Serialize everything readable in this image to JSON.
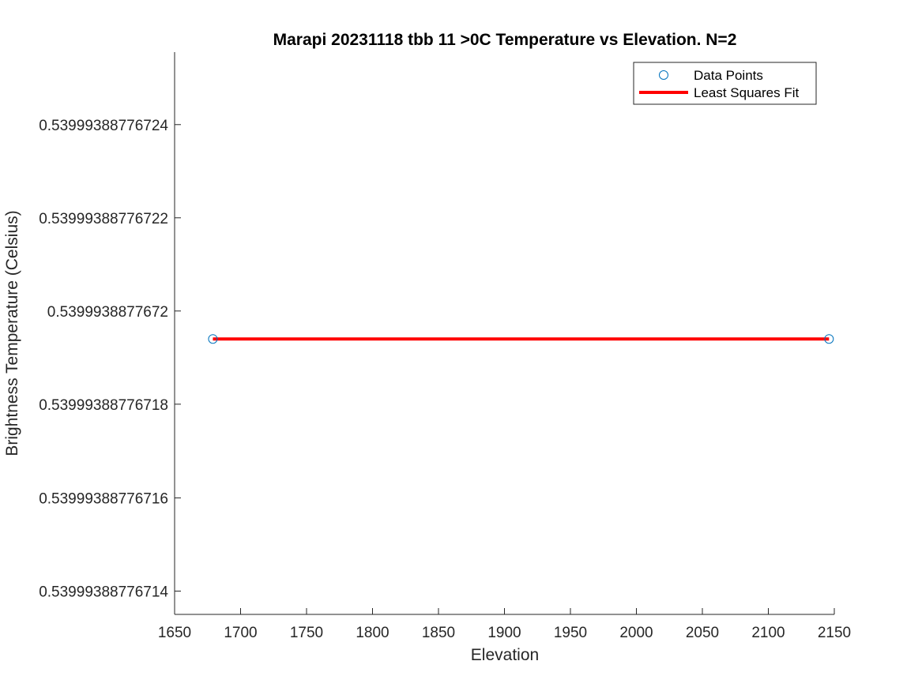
{
  "chart_data": {
    "type": "scatter",
    "title": "Marapi 20231118 tbb 11 >0C Temperature vs Elevation. N=2",
    "xlabel": "Elevation",
    "ylabel": "Brightness Temperature (Celsius)",
    "xlim": [
      1650,
      2150
    ],
    "ylim": [
      0.539993887767135,
      0.5399938877672555
    ],
    "x_ticks": [
      1650,
      1700,
      1750,
      1800,
      1850,
      1900,
      1950,
      2000,
      2050,
      2100,
      2150
    ],
    "x_tick_labels": [
      "1650",
      "1700",
      "1750",
      "1800",
      "1850",
      "1900",
      "1950",
      "2000",
      "2050",
      "2100",
      "2150"
    ],
    "y_ticks": [
      0.53999388776714,
      0.53999388776716,
      0.53999388776718,
      0.5399938877672,
      0.53999388776722,
      0.53999388776724
    ],
    "y_tick_labels": [
      "0.53999388776714",
      "0.53999388776716",
      "0.53999388776718",
      "0.5399938877672",
      "0.53999388776722",
      "0.53999388776724"
    ],
    "grid": false,
    "legend_position": "top-right",
    "series": [
      {
        "name": "Data Points",
        "kind": "scatter",
        "marker": "circle",
        "color": "#0072BD",
        "x": [
          1679,
          2146
        ],
        "y": [
          0.539993887767194,
          0.539993887767194
        ]
      },
      {
        "name": "Least Squares Fit",
        "kind": "line",
        "color": "#FF0000",
        "x": [
          1679,
          2146
        ],
        "y": [
          0.539993887767194,
          0.539993887767194
        ]
      }
    ]
  }
}
